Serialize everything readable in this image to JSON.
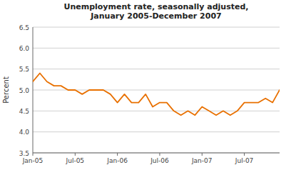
{
  "chart_data": {
    "type": "line",
    "title": "Unemployment rate, seasonally adjusted,\nJanuary 2005-December 2007",
    "y_label": "Percent",
    "categories": [
      "Jan-05",
      null,
      null,
      null,
      null,
      null,
      "Jul-05",
      null,
      null,
      null,
      null,
      null,
      "Jan-06",
      null,
      null,
      null,
      null,
      null,
      "Jul-06",
      null,
      null,
      null,
      null,
      null,
      "Jan-07",
      null,
      null,
      null,
      null,
      null,
      "Jul-07",
      null,
      null,
      null,
      null,
      null
    ],
    "values": [
      5.2,
      5.4,
      5.2,
      5.1,
      5.1,
      5.0,
      5.0,
      4.9,
      5.0,
      5.0,
      5.0,
      4.9,
      4.7,
      4.9,
      4.7,
      4.7,
      4.9,
      4.6,
      4.7,
      4.7,
      4.5,
      4.4,
      4.5,
      4.4,
      4.6,
      4.5,
      4.4,
      4.5,
      4.4,
      4.5,
      4.7,
      4.7,
      4.7,
      4.8,
      4.7,
      5.0
    ],
    "color": "#E87000",
    "ylim": [
      3.5,
      6.5
    ],
    "yticks": [
      3.5,
      {
        "value": 4.0,
        "label": "4.0"
      },
      4.5,
      {
        "value": 5.0,
        "label": "5.0"
      },
      5.5,
      {
        "value": 6.0,
        "label": "6.0"
      },
      6.5
    ],
    "grid": true
  }
}
